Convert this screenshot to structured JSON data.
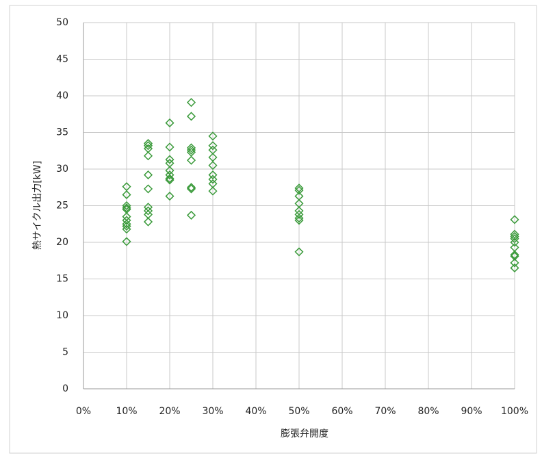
{
  "chart_data": {
    "type": "scatter",
    "xlabel": "膨張弁開度",
    "ylabel": "熱サイクル出力[kW]",
    "xlim": [
      0,
      100
    ],
    "ylim": [
      0,
      50
    ],
    "xticks": [
      {
        "value": 0,
        "label": "0%"
      },
      {
        "value": 10,
        "label": "10%"
      },
      {
        "value": 20,
        "label": "20%"
      },
      {
        "value": 30,
        "label": "30%"
      },
      {
        "value": 40,
        "label": "40%"
      },
      {
        "value": 50,
        "label": "50%"
      },
      {
        "value": 60,
        "label": "60%"
      },
      {
        "value": 70,
        "label": "70%"
      },
      {
        "value": 80,
        "label": "80%"
      },
      {
        "value": 90,
        "label": "90%"
      },
      {
        "value": 100,
        "label": "100%"
      }
    ],
    "yticks": [
      0,
      5,
      10,
      15,
      20,
      25,
      30,
      35,
      40,
      45,
      50
    ],
    "grid": true,
    "series": [
      {
        "color": "#3a9a3a",
        "x": [
          10,
          10,
          10,
          10,
          10,
          10,
          10,
          10,
          10,
          10,
          10,
          15,
          15,
          15,
          15,
          15,
          15,
          15,
          15,
          15,
          15,
          20,
          20,
          20,
          20,
          20,
          20,
          20,
          20,
          20,
          25,
          25,
          25,
          25,
          25,
          25,
          25,
          25,
          25,
          30,
          30,
          30,
          30,
          30,
          30,
          30,
          30,
          30,
          50,
          50,
          50,
          50,
          50,
          50,
          50,
          50,
          50,
          100,
          100,
          100,
          100,
          100,
          100,
          100,
          100,
          100,
          100
        ],
        "values": [
          27.6,
          26.5,
          25.0,
          24.7,
          24.5,
          23.5,
          23.0,
          22.5,
          22.2,
          21.8,
          20.1,
          33.5,
          33.2,
          32.8,
          31.8,
          29.2,
          27.3,
          24.8,
          24.3,
          23.8,
          22.8,
          36.3,
          33.0,
          31.3,
          30.8,
          29.8,
          29.2,
          28.7,
          28.5,
          26.3,
          39.1,
          37.2,
          32.9,
          32.6,
          32.3,
          31.2,
          27.5,
          27.3,
          23.7,
          34.5,
          33.2,
          32.6,
          31.6,
          30.5,
          29.2,
          28.6,
          28.0,
          27.0,
          27.4,
          27.1,
          26.3,
          25.3,
          24.3,
          23.8,
          23.3,
          23.0,
          18.7,
          23.1,
          21.1,
          20.8,
          20.5,
          20.0,
          19.3,
          18.3,
          18.1,
          17.2,
          16.5
        ]
      }
    ]
  }
}
